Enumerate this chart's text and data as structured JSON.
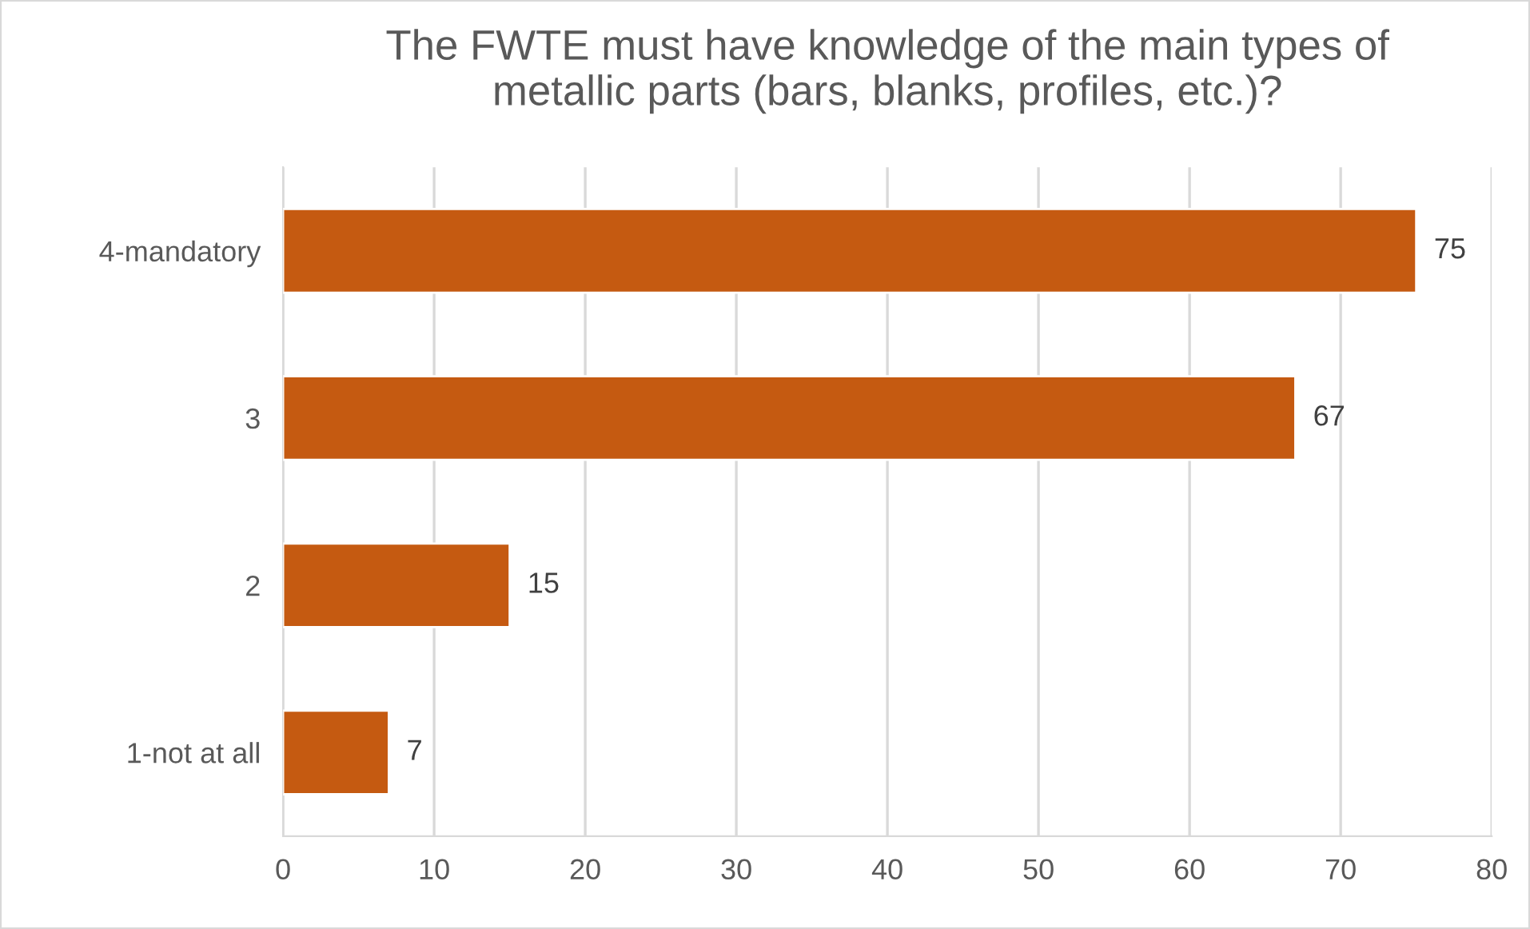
{
  "chart_data": {
    "type": "bar",
    "orientation": "horizontal",
    "title": "The FWTE must have knowledge of the main types of\nmetallic parts (bars, blanks, profiles, etc.)?",
    "categories": [
      "4-mandatory",
      "3",
      "2",
      "1-not at all"
    ],
    "values": [
      75,
      67,
      15,
      7
    ],
    "color": "#c55a11",
    "xlim": [
      0,
      80
    ],
    "xticks": [
      0,
      10,
      20,
      30,
      40,
      50,
      60,
      70,
      80
    ],
    "grid": "x",
    "data_labels": true
  }
}
